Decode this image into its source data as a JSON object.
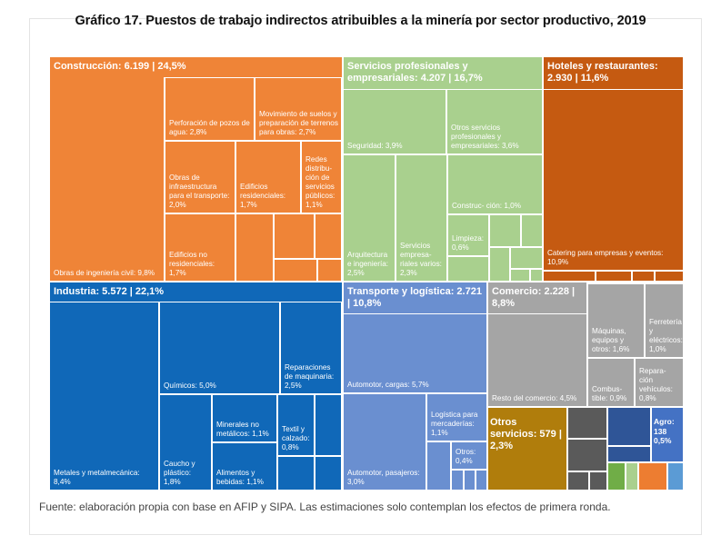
{
  "title": "Gráfico 17. Puestos de trabajo indirectos atribuibles a la minería por sector productivo, 2019",
  "footer": "Fuente: elaboración propia con base en AFIP y SIPA. Las estimaciones solo contemplan los efectos de primera ronda.",
  "colors": {
    "construccion": "#ef8437",
    "servicios": "#a9d08e",
    "hoteles": "#c55a11",
    "industria": "#1068b8",
    "transporte": "#6a8fd0",
    "comercio": "#a5a5a5",
    "otros": "#b07d0c",
    "otros_extra_dark": "#5a5a5a",
    "otros_extra_blue": "#2f5597",
    "agro": "#4472c4"
  },
  "chart_data": {
    "type": "treemap",
    "title": "Gráfico 17. Puestos de trabajo indirectos atribuibles a la minería por sector productivo, 2019",
    "unit": "puestos de trabajo | % del total",
    "sectors": [
      {
        "name": "Construcción",
        "value": 6199,
        "share": 24.5,
        "header": "Construcción: 6.199 | 24,5%",
        "items": [
          {
            "label": "Obras de ingeniería civil: 9,8%",
            "share": 9.8
          },
          {
            "label": "Movimiento de suelos y preparación de terrenos para obras: 2,7%",
            "share": 2.7
          },
          {
            "label": "Perforación de pozos de agua: 2,8%",
            "share": 2.8
          },
          {
            "label": "Obras de infraestructura para el transporte: 2,0%",
            "share": 2.0
          },
          {
            "label": "Edificios residenciales: 1,7%",
            "share": 1.7
          },
          {
            "label": "Redes distribu- ción de servicios públicos: 1,1%",
            "share": 1.1
          },
          {
            "label": "Edificios no residenciales: 1,7%",
            "share": 1.7
          }
        ]
      },
      {
        "name": "Servicios profesionales y empresariales",
        "value": 4207,
        "share": 16.7,
        "header": "Servicios profesionales y empresariales: 4.207 | 16,7%",
        "items": [
          {
            "label": "Seguridad: 3,9%",
            "share": 3.9
          },
          {
            "label": "Otros servicios profesionales y empresariales: 3,6%",
            "share": 3.6
          },
          {
            "label": "Construc- ción: 1,0%",
            "share": 1.0
          },
          {
            "label": "Arquitectura e ingeniería: 2,5%",
            "share": 2.5
          },
          {
            "label": "Servicios empresa- riales varios: 2,3%",
            "share": 2.3
          },
          {
            "label": "Limpieza: 0,6%",
            "share": 0.6
          }
        ]
      },
      {
        "name": "Hoteles y restaurantes",
        "value": 2930,
        "share": 11.6,
        "header": "Hoteles y restaurantes: 2.930 | 11,6%",
        "items": [
          {
            "label": "Catering para empresas y eventos: 10,9%",
            "share": 10.9
          }
        ]
      },
      {
        "name": "Industria",
        "value": 5572,
        "share": 22.1,
        "header": "Industria: 5.572 | 22,1%",
        "items": [
          {
            "label": "Metales y metalmecánica: 8,4%",
            "share": 8.4
          },
          {
            "label": "Químicos: 5,0%",
            "share": 5.0
          },
          {
            "label": "Reparaciones de maquinaria: 2,5%",
            "share": 2.5
          },
          {
            "label": "Minerales no metálicos: 1,1%",
            "share": 1.1
          },
          {
            "label": "Textil y calzado: 0,8%",
            "share": 0.8
          },
          {
            "label": "Caucho y plástico: 1,8%",
            "share": 1.8
          },
          {
            "label": "Alimentos y bebidas: 1,1%",
            "share": 1.1
          }
        ]
      },
      {
        "name": "Transporte y logística",
        "value": 2721,
        "share": 10.8,
        "header": "Transporte y logística: 2.721 | 10,8%",
        "items": [
          {
            "label": "Automotor, cargas: 5,7%",
            "share": 5.7
          },
          {
            "label": "Logística para mercaderías: 1,1%",
            "share": 1.1
          },
          {
            "label": "Otros: 0,4%",
            "share": 0.4
          },
          {
            "label": "Automotor, pasajeros: 3,0%",
            "share": 3.0
          }
        ]
      },
      {
        "name": "Comercio",
        "value": 2228,
        "share": 8.8,
        "header": "Comercio: 2.228 | 8,8%",
        "items": [
          {
            "label": "Resto del comercio: 4,5%",
            "share": 4.5
          },
          {
            "label": "Máquinas, equipos y otros: 1,6%",
            "share": 1.6
          },
          {
            "label": "Ferretería y eléctricos: 1,0%",
            "share": 1.0
          },
          {
            "label": "Combus- tible: 0,9%",
            "share": 0.9
          },
          {
            "label": "Repara- ción vehículos: 0,8%",
            "share": 0.8
          }
        ]
      },
      {
        "name": "Otros servicios",
        "value": 579,
        "share": 2.3,
        "header": "Otros servicios: 579 | 2,3%",
        "items": []
      },
      {
        "name": "Agro",
        "value": 138,
        "share": 0.5,
        "header": "Agro: 138 0,5%",
        "items": []
      }
    ]
  }
}
